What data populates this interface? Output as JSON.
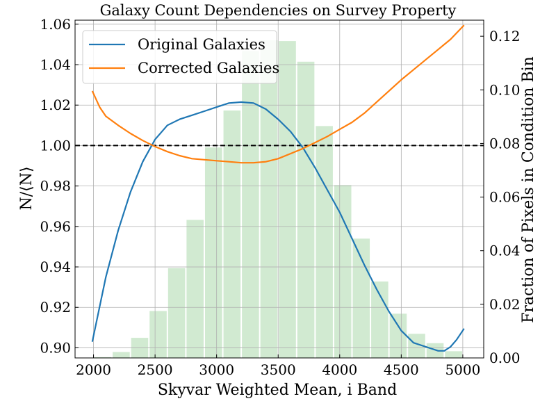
{
  "chart_data": {
    "type": "line",
    "title": "Galaxy Count Dependencies on Survey Property",
    "xlabel": "Skyvar Weighted Mean, i Band",
    "ylabel": "N/⟨N⟩",
    "ylabel_right": "Fraction of Pixels in Condition Bin",
    "xlim": [
      1850,
      5170
    ],
    "ylim": [
      0.895,
      1.062
    ],
    "ylim_right": [
      0.0,
      0.126
    ],
    "x_ticks": [
      2000,
      2500,
      3000,
      3500,
      4000,
      4500,
      5000
    ],
    "y_ticks": [
      0.9,
      0.92,
      0.94,
      0.96,
      0.98,
      1.0,
      1.02,
      1.04,
      1.06
    ],
    "y_ticks_right": [
      0.0,
      0.02,
      0.04,
      0.06,
      0.08,
      0.1,
      0.12
    ],
    "grid": true,
    "legend_position": "upper-left",
    "reference_line": {
      "y": 1.0,
      "style": "dashed",
      "color": "#000000"
    },
    "histogram": {
      "color": "#2ca02c",
      "opacity": 0.22,
      "bin_edges": [
        2000,
        2150,
        2300,
        2450,
        2600,
        2750,
        2900,
        3050,
        3200,
        3350,
        3500,
        3650,
        3800,
        3950,
        4100,
        4250,
        4400,
        4550,
        4700,
        4850,
        5000
      ],
      "values": [
        0.0003,
        0.0022,
        0.0075,
        0.0175,
        0.0335,
        0.0515,
        0.0785,
        0.0923,
        0.1145,
        0.1185,
        0.1182,
        0.1105,
        0.0865,
        0.0645,
        0.0445,
        0.0285,
        0.0165,
        0.009,
        0.0055,
        0.0025
      ]
    },
    "series": [
      {
        "name": "Original Galaxies",
        "color": "#1f77b4",
        "x": [
          1990,
          2100,
          2200,
          2300,
          2400,
          2500,
          2600,
          2700,
          2800,
          2900,
          3000,
          3100,
          3200,
          3300,
          3400,
          3500,
          3600,
          3700,
          3800,
          3900,
          4000,
          4100,
          4200,
          4300,
          4400,
          4500,
          4600,
          4700,
          4800,
          4850,
          4900,
          4950,
          5010
        ],
        "values": [
          0.903,
          0.935,
          0.958,
          0.977,
          0.992,
          1.003,
          1.01,
          1.013,
          1.015,
          1.017,
          1.019,
          1.021,
          1.0215,
          1.021,
          1.018,
          1.013,
          1.007,
          0.999,
          0.989,
          0.978,
          0.967,
          0.954,
          0.941,
          0.929,
          0.918,
          0.9085,
          0.9025,
          0.9005,
          0.8985,
          0.8985,
          0.9005,
          0.904,
          0.9095
        ]
      },
      {
        "name": "Corrected Galaxies",
        "color": "#ff7f0e",
        "x": [
          1990,
          2050,
          2100,
          2200,
          2300,
          2400,
          2500,
          2600,
          2700,
          2800,
          2900,
          3000,
          3100,
          3200,
          3300,
          3400,
          3500,
          3600,
          3700,
          3800,
          3900,
          4000,
          4100,
          4200,
          4300,
          4400,
          4500,
          4600,
          4700,
          4800,
          4900,
          5010
        ],
        "values": [
          1.027,
          1.019,
          1.0145,
          1.01,
          1.006,
          1.0025,
          0.9995,
          0.997,
          0.995,
          0.9935,
          0.993,
          0.9925,
          0.992,
          0.9915,
          0.9915,
          0.992,
          0.9935,
          0.996,
          0.9985,
          1.0015,
          1.0045,
          1.008,
          1.0115,
          1.016,
          1.0215,
          1.027,
          1.0325,
          1.0375,
          1.0425,
          1.0475,
          1.0525,
          1.0595
        ]
      }
    ]
  }
}
